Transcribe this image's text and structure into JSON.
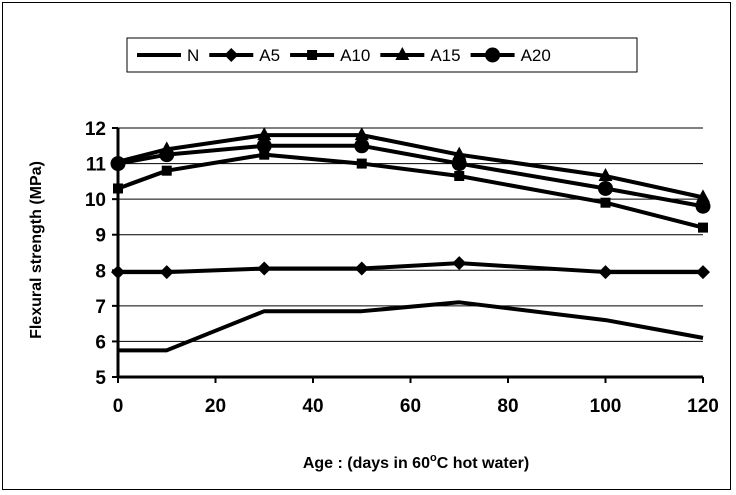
{
  "chart_data": {
    "type": "line",
    "x": [
      0,
      10,
      30,
      50,
      70,
      100,
      120
    ],
    "series": [
      {
        "name": "N",
        "marker": "none",
        "values": [
          5.75,
          5.75,
          6.85,
          6.85,
          7.1,
          6.6,
          6.1
        ]
      },
      {
        "name": "A5",
        "marker": "diamond",
        "values": [
          7.95,
          7.95,
          8.05,
          8.05,
          8.2,
          7.95,
          7.95
        ]
      },
      {
        "name": "A10",
        "marker": "square",
        "values": [
          10.3,
          10.8,
          11.25,
          11.0,
          10.65,
          9.9,
          9.2
        ]
      },
      {
        "name": "A15",
        "marker": "triangle",
        "values": [
          11.05,
          11.4,
          11.8,
          11.8,
          11.25,
          10.65,
          10.05
        ]
      },
      {
        "name": "A20",
        "marker": "circle",
        "values": [
          11.0,
          11.25,
          11.5,
          11.5,
          11.0,
          10.3,
          9.8
        ]
      }
    ],
    "xlabel_prefix": "Age : (days in 60",
    "xlabel_degree": "o",
    "xlabel_suffix": "C hot water)",
    "ylabel": "Flexural strength (MPa)",
    "xlim": [
      0,
      120
    ],
    "ylim": [
      5,
      12
    ],
    "xticks": [
      0,
      20,
      40,
      60,
      80,
      100,
      120
    ],
    "yticks": [
      5,
      6,
      7,
      8,
      9,
      10,
      11,
      12
    ],
    "grid": "horizontal",
    "legend_position": "top",
    "line_color": "#000000"
  }
}
